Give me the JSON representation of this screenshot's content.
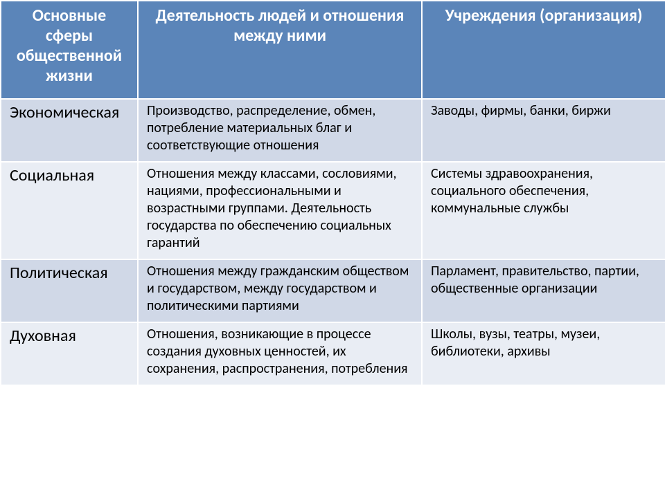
{
  "table": {
    "header_bg": "#5b85b9",
    "header_color": "#ffffff",
    "header_fontsize": 24,
    "row_band_light": "#d0d8e7",
    "row_band_dark": "#e9edf4",
    "border_color": "#ffffff",
    "border_width": 2,
    "columns": [
      "Основные сферы общественной жизни",
      "Деятельность людей и отношения между ними",
      "Учреждения (организация)"
    ],
    "rows": [
      {
        "sphere": "Экономическая",
        "activity": "Производство, распределение, обмен, потребление материальных благ и соответствующие отношения",
        "institutions": "Заводы, фирмы, банки, биржи"
      },
      {
        "sphere": "Социальная",
        "activity": "Отношения между классами, сословиями, нациями, профессиональными и возрастными группами. Деятельность государства по обеспечению социальных гарантий",
        "institutions": "Системы здравоохранения, социального обеспечения, коммунальные службы"
      },
      {
        "sphere": "Политическая",
        "activity": "Отношения между гражданским обществом и государством, между государством и политическими партиями",
        "institutions": "Парламент, правительство, партии, общественные организации"
      },
      {
        "sphere": "Духовная",
        "activity": "Отношения, возникающие в процессе создания духовных ценностей, их сохранения, распространения, потребления",
        "institutions": "Школы, вузы, театры, музеи, библиотеки, архивы"
      }
    ]
  }
}
